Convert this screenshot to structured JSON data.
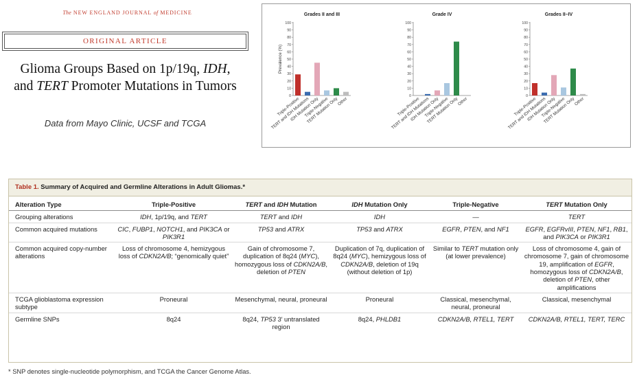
{
  "journal": {
    "prefix": "The",
    "name_a": "NEW ENGLAND JOURNAL",
    "of": "of",
    "name_b": "MEDICINE"
  },
  "article_type": "ORIGINAL ARTICLE",
  "title": {
    "l1a": "Glioma Groups Based on 1p/19q, ",
    "l1b": "IDH",
    "l1c": ",",
    "l2a": "and ",
    "l2b": "TERT",
    "l2c": " Promoter Mutations in Tumors"
  },
  "data_source": "Data from Mayo Clinic, UCSF and TCGA",
  "chart_data": [
    {
      "type": "bar",
      "title": "Grades II and III",
      "ylabel": "Prevalence (%)",
      "ylim": [
        0,
        100
      ],
      "yticks": [
        0,
        10,
        20,
        30,
        40,
        50,
        60,
        70,
        80,
        90,
        100
      ],
      "categories": [
        "Triple-Positive",
        "TERT and IDH Mutations",
        "IDH Mutation Only",
        "Triple-Negative",
        "TERT Mutation Only",
        "Other"
      ],
      "values": [
        29,
        5,
        45,
        7,
        10,
        5
      ]
    },
    {
      "type": "bar",
      "title": "Grade IV",
      "ylim": [
        0,
        100
      ],
      "yticks": [
        0,
        10,
        20,
        30,
        40,
        50,
        60,
        70,
        80,
        90,
        100
      ],
      "categories": [
        "Triple-Positive",
        "TERT and IDH Mutations",
        "IDH Mutation Only",
        "Triple-Negative",
        "TERT Mutation Only",
        "Other"
      ],
      "values": [
        0,
        2,
        7,
        17,
        74,
        0
      ]
    },
    {
      "type": "bar",
      "title": "Grades II–IV",
      "ylim": [
        0,
        100
      ],
      "yticks": [
        0,
        10,
        20,
        30,
        40,
        50,
        60,
        70,
        80,
        90,
        100
      ],
      "categories": [
        "Triple-Positive",
        "TERT and IDH Mutations",
        "IDH Mutation Only",
        "Triple-Negative",
        "TERT Mutation Only",
        "Other"
      ],
      "values": [
        17,
        4,
        28,
        11,
        37,
        2
      ]
    }
  ],
  "bar_colors": [
    "#c0302b",
    "#3b6cb0",
    "#e3a7b7",
    "#a9c7e0",
    "#2e8b4a",
    "#bdbdbd"
  ],
  "table": {
    "label": "Table 1.",
    "caption": " Summary of Acquired and Germline Alterations in Adult Gliomas.*",
    "headers": {
      "c0": "Alteration Type",
      "c1": "Triple-Positive",
      "c2a": "TERT",
      "c2b": " and ",
      "c2c": "IDH",
      "c2d": " Mutation",
      "c3a": "IDH",
      "c3b": " Mutation Only",
      "c4": "Triple-Negative",
      "c5a": "TERT",
      "c5b": " Mutation Only"
    },
    "r1": {
      "label": "Grouping alterations",
      "c1a": "IDH",
      "c1b": ", 1p/19q, and ",
      "c1c": "TERT",
      "c2a": "TERT",
      "c2b": " and ",
      "c2c": "IDH",
      "c3": "IDH",
      "c4": "—",
      "c5": "TERT"
    },
    "r2": {
      "label": "Common acquired mutations",
      "c1a": "CIC",
      "c1b": ", ",
      "c1c": "FUBP1",
      "c1d": ", ",
      "c1e": "NOTCH1",
      "c1f": ", and ",
      "c1g": "PIK3CA",
      "c1h": " or ",
      "c1i": "PIK3R1",
      "c2a": "TP53",
      "c2b": " and ",
      "c2c": "ATRX",
      "c3a": "TP53",
      "c3b": " and ",
      "c3c": "ATRX",
      "c4a": "EGFR",
      "c4b": ", ",
      "c4c": "PTEN",
      "c4d": ", and ",
      "c4e": "NF1",
      "c5a": "EGFR",
      "c5b": ", ",
      "c5c": "EGFRvIII",
      "c5d": ", ",
      "c5e": "PTEN",
      "c5f": ", ",
      "c5g": "NF1",
      "c5h": ", ",
      "c5i": "RB1",
      "c5j": ", and ",
      "c5k": "PIK3CA",
      "c5l": " or ",
      "c5m": "PIK3R1"
    },
    "r3": {
      "label": "Common acquired copy-number alterations",
      "c1a": "Loss of chromosome 4, hemizygous loss of ",
      "c1b": "CDKN2A/B",
      "c1c": "; “genomically quiet”",
      "c2a": "Gain of chromosome 7, duplication of 8q24 (",
      "c2b": "MYC",
      "c2c": "), homozygous loss of ",
      "c2d": "CDKN2A/B",
      "c2e": ", deletion of ",
      "c2f": "PTEN",
      "c3a": "Duplication of 7q, duplication of 8q24 (",
      "c3b": "MYC",
      "c3c": "), hemizygous loss of ",
      "c3d": "CDKN2A/B",
      "c3e": ", deletion of 19q (without deletion of 1p)",
      "c4a": "Similar to ",
      "c4b": "TERT",
      "c4c": " mutation only (at lower prevalence)",
      "c5a": "Loss of chromosome 4, gain of chromosome 7, gain of chromosome 19, amplification of ",
      "c5b": "EGFR",
      "c5c": ", homozygous loss of ",
      "c5d": "CDKN2A/B",
      "c5e": ", deletion of ",
      "c5f": "PTEN",
      "c5g": ", other amplifications"
    },
    "r4": {
      "label": "TCGA glioblastoma expression subtype",
      "c1": "Proneural",
      "c2": "Mesenchymal, neural, proneural",
      "c3": "Proneural",
      "c4": "Classical, mesenchymal, neural, proneural",
      "c5": "Classical, mesenchymal"
    },
    "r5": {
      "label": "Germline SNPs",
      "c1": "8q24",
      "c2a": "8q24, ",
      "c2b": "TP53",
      "c2c": " 3′ untranslated region",
      "c3a": "8q24, ",
      "c3b": "PHLDB1",
      "c4": "CDKN2A/B, RTEL1, TERT",
      "c5": "CDKN2A/B, RTEL1, TERT, TERC"
    }
  },
  "footnote": "* SNP denotes single-nucleotide polymorphism, and TCGA the Cancer Genome Atlas."
}
